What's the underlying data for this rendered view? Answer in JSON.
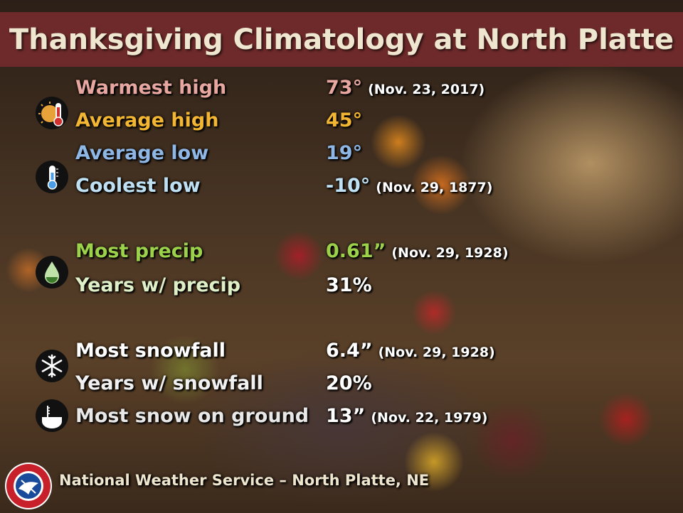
{
  "title": "Thanksgiving Climatology at North Platte",
  "rows": [
    {
      "label": "Warmest high",
      "value": "73°",
      "date": "(Nov. 23, 2017)",
      "label_color": "#e7a7a0",
      "value_color": "#e7a7a0"
    },
    {
      "label": "Average high",
      "value": "45°",
      "date": "",
      "label_color": "#f2b632",
      "value_color": "#f2b632"
    },
    {
      "label": "Average low",
      "value": "19°",
      "date": "",
      "label_color": "#8fb7e6",
      "value_color": "#8fb7e6"
    },
    {
      "label": "Coolest low",
      "value": "-10°",
      "date": "(Nov. 29, 1877)",
      "label_color": "#bfe0f2",
      "value_color": "#bfe0f2"
    },
    {
      "label": "Most precip",
      "value": "0.61”",
      "date": "(Nov. 29, 1928)",
      "label_color": "#9bd24a",
      "value_color": "#9bd24a"
    },
    {
      "label": "Years w/ precip",
      "value": "31%",
      "date": "",
      "label_color": "#dff0c8",
      "value_color": "#ffffff"
    },
    {
      "label": "Most snowfall",
      "value": "6.4”",
      "date": "(Nov. 29, 1928)",
      "label_color": "#ffffff",
      "value_color": "#ffffff"
    },
    {
      "label": "Years w/ snowfall",
      "value": "20%",
      "date": "",
      "label_color": "#f0f0f0",
      "value_color": "#ffffff"
    },
    {
      "label": "Most snow on ground",
      "value": "13”",
      "date": "(Nov. 22, 1979)",
      "label_color": "#e8e8e8",
      "value_color": "#ffffff"
    }
  ],
  "icons": [
    "temperature-high-icon",
    "thermometer-cold-icon",
    "precipitation-drop-icon",
    "snowflake-icon",
    "snow-depth-icon"
  ],
  "footer": "National Weather Service – North Platte, NE",
  "logo_text": "NATIONAL WEATHER SERVICE"
}
